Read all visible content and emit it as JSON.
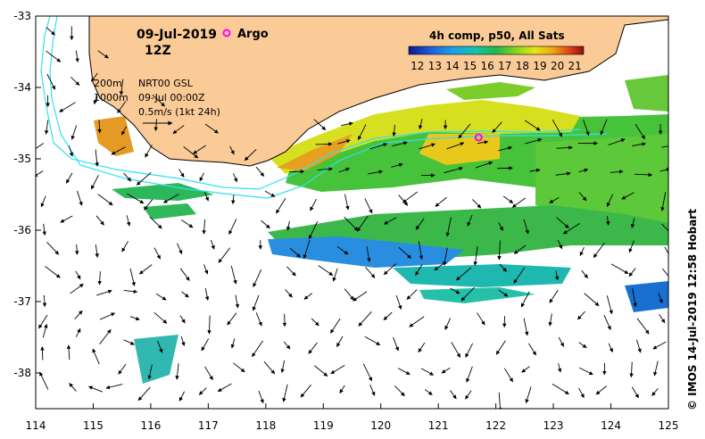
{
  "map": {
    "date": "09-Jul-2019",
    "time": "12Z",
    "argo_label": "Argo",
    "legend": {
      "isobath_1": "200m",
      "isobath_2": "1000m",
      "product": "NRT00 GSL",
      "valid": "09-Jul 00:00Z",
      "scale": "0.5m/s (1kt 24h)"
    },
    "credit": "© IMOS 14-Jul-2019 12:58 Hobart",
    "colorbar": {
      "title": "4h comp, p50, All Sats",
      "min": 11.5,
      "max": 21.5,
      "ticks": [
        "12",
        "13",
        "14",
        "15",
        "16",
        "17",
        "18",
        "19",
        "20",
        "21"
      ]
    },
    "axes": {
      "lon_ticks": [
        "114",
        "115",
        "116",
        "117",
        "118",
        "119",
        "120",
        "121",
        "122",
        "123",
        "124",
        "125"
      ],
      "lat_ticks": [
        "-33",
        "-34",
        "-35",
        "-36",
        "-37",
        "-38"
      ]
    },
    "argo_float": {
      "lon": 121.7,
      "lat": -34.7
    },
    "colors": {
      "land": "#facb96",
      "isobath": "#33e0f0",
      "argo": "#ff00ff",
      "coast": "#000000"
    }
  }
}
